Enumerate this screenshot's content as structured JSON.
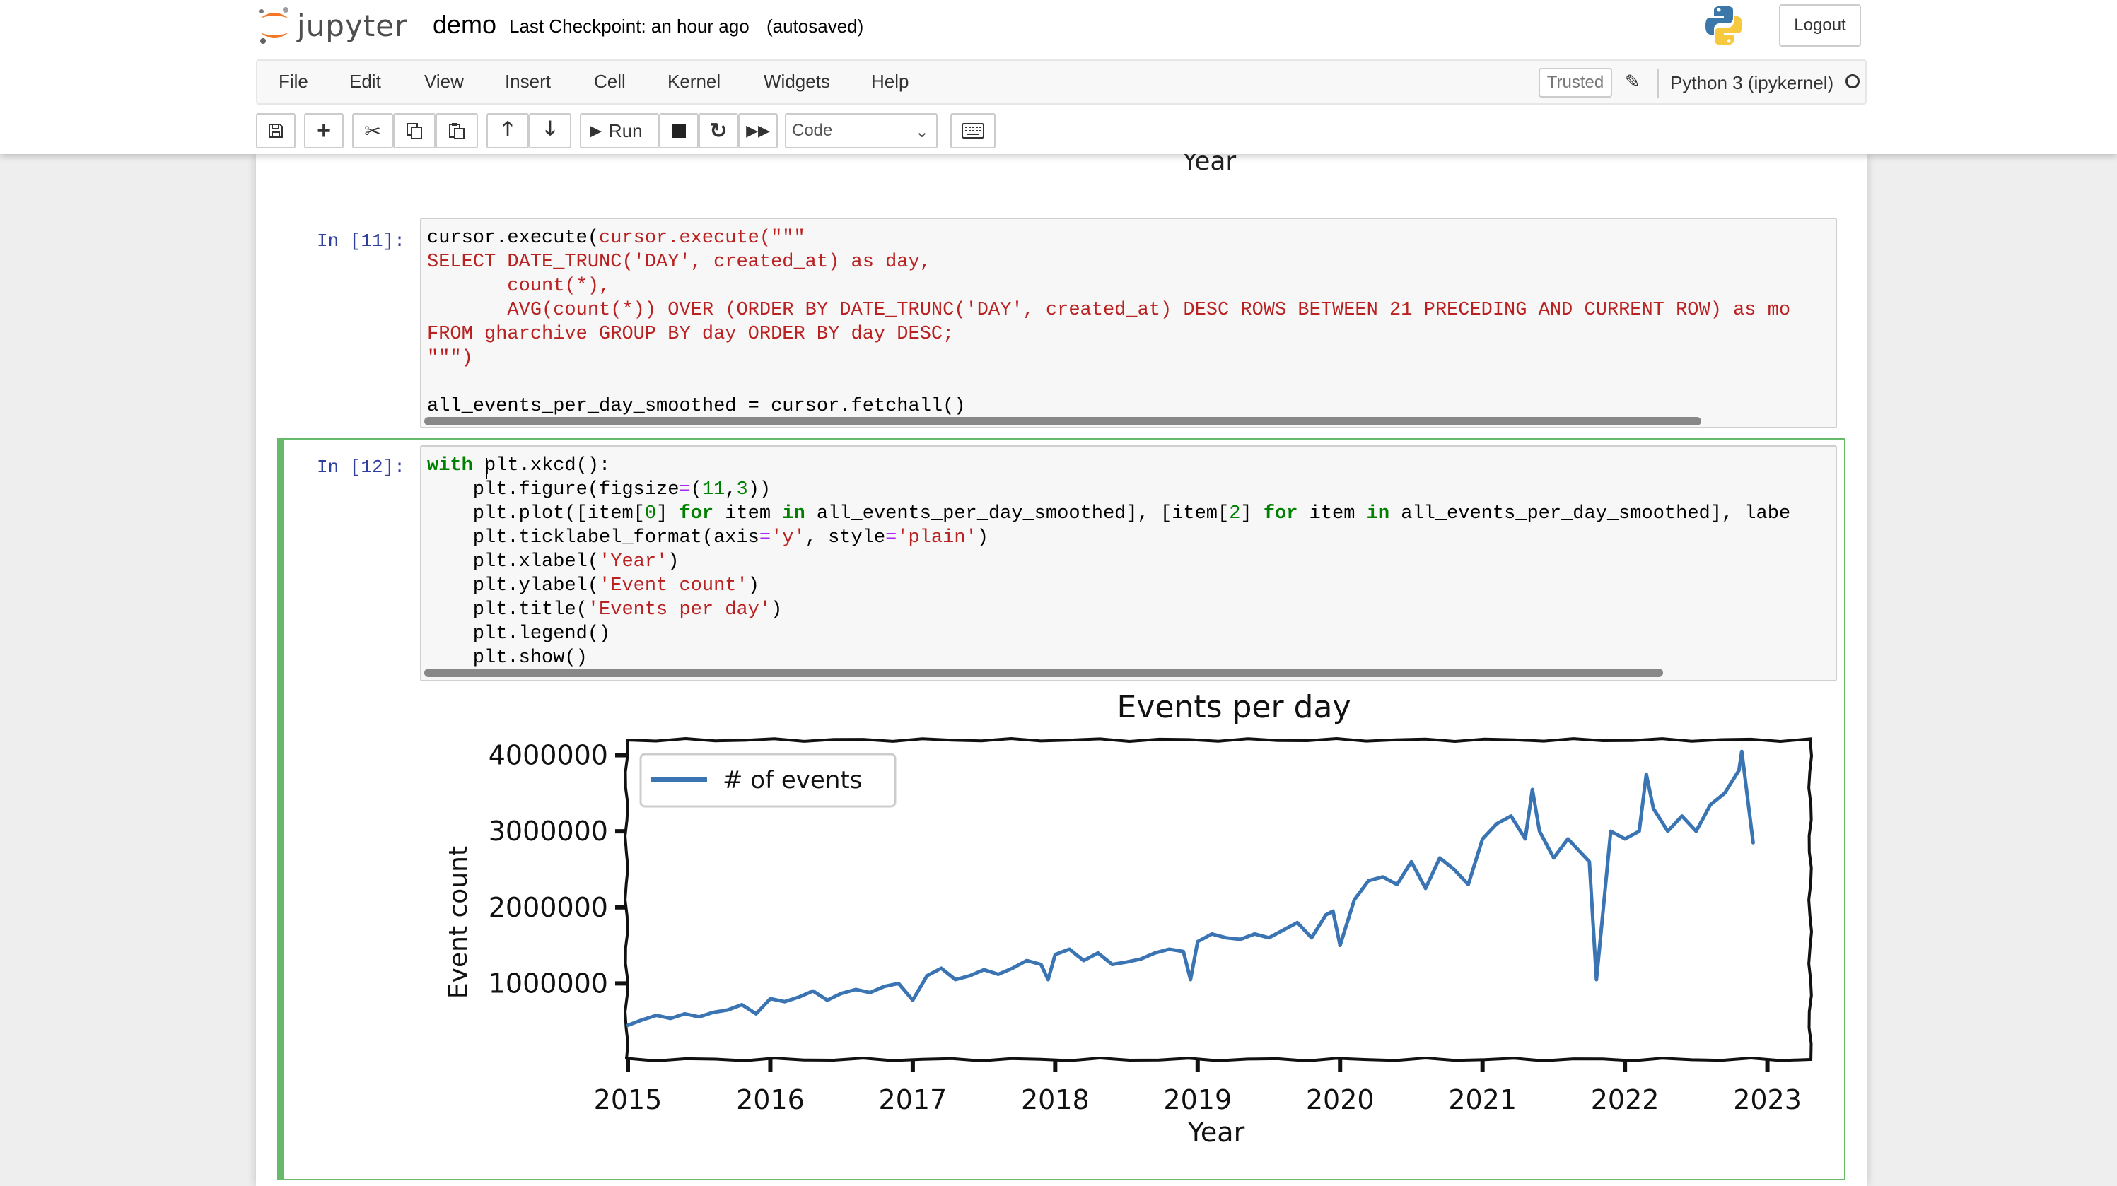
{
  "header": {
    "logo_text": "jupyter",
    "notebook_name": "demo",
    "checkpoint": "Last Checkpoint: an hour ago",
    "autosaved": "(autosaved)",
    "logout_label": "Logout"
  },
  "menubar": {
    "items": [
      "File",
      "Edit",
      "View",
      "Insert",
      "Cell",
      "Kernel",
      "Widgets",
      "Help"
    ],
    "trusted_label": "Trusted",
    "kernel_name": "Python 3 (ipykernel)"
  },
  "toolbar": {
    "run_label": "Run",
    "cell_type": "Code"
  },
  "previous_output": {
    "xlabel": "Year"
  },
  "cells": [
    {
      "prompt": "In [11]:",
      "lines": [
        "cursor.execute(\"\"\"",
        "SELECT DATE_TRUNC('DAY', created_at) as day,",
        "       count(*),",
        "       AVG(count(*)) OVER (ORDER BY DATE_TRUNC('DAY', created_at) DESC ROWS BETWEEN 21 PRECEDING AND CURRENT ROW) as mo",
        "FROM gharchive GROUP BY day ORDER BY day DESC;",
        "\"\"\")",
        "",
        "all_events_per_day_smoothed = cursor.fetchall()"
      ]
    },
    {
      "prompt": "In [12]:",
      "lines": [
        "with plt.xkcd():",
        "    plt.figure(figsize=(11,3))",
        "    plt.plot([item[0] for item in all_events_per_day_smoothed], [item[2] for item in all_events_per_day_smoothed], labe",
        "    plt.ticklabel_format(axis='y', style='plain')",
        "    plt.xlabel('Year')",
        "    plt.ylabel('Event count')",
        "    plt.title('Events per day')",
        "    plt.legend()",
        "    plt.show()"
      ]
    }
  ],
  "chart_data": {
    "type": "line",
    "title": "Events per day",
    "xlabel": "Year",
    "ylabel": "Event count",
    "xlim": [
      2014.99,
      2023.3
    ],
    "ylim": [
      0,
      4200000
    ],
    "xticks": [
      "2015",
      "2016",
      "2017",
      "2018",
      "2019",
      "2020",
      "2021",
      "2022",
      "2023"
    ],
    "yticks": [
      "1000000",
      "2000000",
      "3000000",
      "4000000"
    ],
    "legend_position": "top-left",
    "series": [
      {
        "name": "# of events",
        "color": "#3a74b3",
        "x": [
          2015.0,
          2015.1,
          2015.2,
          2015.3,
          2015.4,
          2015.5,
          2015.6,
          2015.7,
          2015.8,
          2015.9,
          2016.0,
          2016.1,
          2016.2,
          2016.3,
          2016.4,
          2016.5,
          2016.6,
          2016.7,
          2016.8,
          2016.9,
          2017.0,
          2017.1,
          2017.2,
          2017.3,
          2017.4,
          2017.5,
          2017.6,
          2017.7,
          2017.8,
          2017.9,
          2017.95,
          2018.0,
          2018.1,
          2018.2,
          2018.3,
          2018.4,
          2018.5,
          2018.6,
          2018.7,
          2018.8,
          2018.9,
          2018.95,
          2019.0,
          2019.05,
          2019.1,
          2019.2,
          2019.3,
          2019.4,
          2019.5,
          2019.6,
          2019.7,
          2019.8,
          2019.9,
          2019.95,
          2020.0,
          2020.1,
          2020.2,
          2020.3,
          2020.4,
          2020.5,
          2020.6,
          2020.7,
          2020.8,
          2020.9,
          2021.0,
          2021.1,
          2021.2,
          2021.3,
          2021.35,
          2021.4,
          2021.5,
          2021.6,
          2021.7,
          2021.75,
          2021.8,
          2021.9,
          2022.0,
          2022.1,
          2022.15,
          2022.2,
          2022.3,
          2022.4,
          2022.5,
          2022.6,
          2022.7,
          2022.8,
          2022.82,
          2022.9
        ],
        "y": [
          450000,
          520000,
          580000,
          540000,
          600000,
          560000,
          620000,
          650000,
          720000,
          600000,
          800000,
          760000,
          820000,
          900000,
          780000,
          870000,
          920000,
          880000,
          960000,
          1000000,
          780000,
          1100000,
          1200000,
          1050000,
          1100000,
          1180000,
          1120000,
          1200000,
          1300000,
          1250000,
          1050000,
          1380000,
          1450000,
          1300000,
          1400000,
          1250000,
          1280000,
          1320000,
          1400000,
          1450000,
          1420000,
          1050000,
          1550000,
          1600000,
          1650000,
          1600000,
          1580000,
          1650000,
          1600000,
          1700000,
          1800000,
          1600000,
          1900000,
          1950000,
          1500000,
          2100000,
          2350000,
          2400000,
          2300000,
          2600000,
          2250000,
          2650000,
          2500000,
          2300000,
          2900000,
          3100000,
          3200000,
          2900000,
          3550000,
          3000000,
          2650000,
          2900000,
          2700000,
          2600000,
          1050000,
          3000000,
          2900000,
          3000000,
          3750000,
          3300000,
          3000000,
          3200000,
          3000000,
          3350000,
          3500000,
          3800000,
          4050000,
          2850000
        ]
      }
    ]
  }
}
